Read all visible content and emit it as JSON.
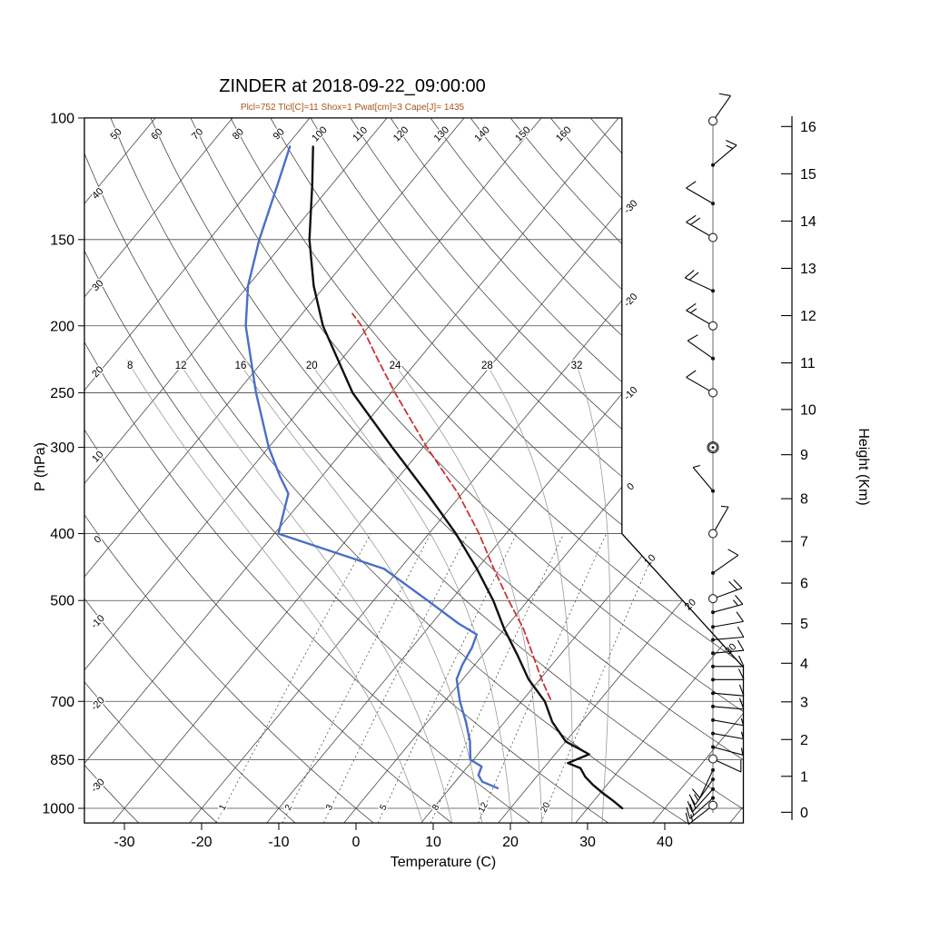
{
  "title": "ZINDER at 2018-09-22_09:00:00",
  "subtitle": "Plcl=752 Tlcl[C]=11 Shox=1 Pwat[cm]=3 Cape[J]= 1435",
  "axes": {
    "x_label": "Temperature (C)",
    "y_left_label": "P (hPa)",
    "y_right_label": "Height (Km)",
    "pressure_ticks": [
      100,
      150,
      200,
      250,
      300,
      400,
      500,
      700,
      850,
      1000
    ],
    "temperature_ticks": [
      -30,
      -20,
      -10,
      0,
      10,
      20,
      30,
      40
    ],
    "height_ticks_km": [
      0,
      1,
      2,
      3,
      4,
      5,
      6,
      7,
      8,
      9,
      10,
      11,
      12,
      13,
      14,
      15,
      16
    ]
  },
  "colors": {
    "temperature_curve": "#101010",
    "dewpoint_curve": "#4a6fc8",
    "parcel_curve": "#cc3333",
    "subtitle_text": "#A5531C",
    "background_lines": "#4a4a42",
    "moist_adiabat_lines": "#9a9a9a",
    "mixing_ratio_lines": "#3a3a3a",
    "frame": "#000000"
  },
  "chart_data": {
    "type": "skew-t-log-p sounding",
    "station": "ZINDER",
    "datetime": "2018-09-22_09:00:00",
    "indices": {
      "Plcl_hPa": 752,
      "Tlcl_C": 11,
      "Shox": 1,
      "Pwat_cm": 3,
      "Cape_J": 1435
    },
    "top_dry_adiabat_labels": [
      50,
      60,
      70,
      80,
      90,
      100,
      110,
      120,
      130,
      140,
      150,
      160
    ],
    "left_dry_adiabat_labels": [
      40,
      30,
      20,
      10,
      0,
      -10,
      -20,
      -30
    ],
    "right_isotherm_labels": [
      -30,
      -20,
      -10,
      0,
      10,
      20,
      30
    ],
    "moist_adiabat_labels": [
      8,
      12,
      16,
      20,
      24,
      28,
      32
    ],
    "mixing_ratio_lines_g_kg": [
      1,
      2,
      3,
      5,
      8,
      12,
      20
    ],
    "temperature_profile_p_T": [
      [
        1000,
        34.5
      ],
      [
        975,
        32.5
      ],
      [
        950,
        30.3
      ],
      [
        925,
        28.2
      ],
      [
        900,
        26.3
      ],
      [
        875,
        24.8
      ],
      [
        860,
        22.6
      ],
      [
        835,
        24.4
      ],
      [
        800,
        20.0
      ],
      [
        750,
        16.2
      ],
      [
        700,
        13.0
      ],
      [
        650,
        8.5
      ],
      [
        600,
        4.5
      ],
      [
        550,
        0.0
      ],
      [
        500,
        -4.5
      ],
      [
        450,
        -10.0
      ],
      [
        400,
        -16.5
      ],
      [
        350,
        -24.5
      ],
      [
        300,
        -34.0
      ],
      [
        250,
        -45.0
      ],
      [
        200,
        -56.0
      ],
      [
        175,
        -61.5
      ],
      [
        150,
        -67.0
      ],
      [
        125,
        -72.5
      ],
      [
        110,
        -76.5
      ]
    ],
    "dewpoint_profile_p_Td": [
      [
        935,
        16.2
      ],
      [
        915,
        13.5
      ],
      [
        895,
        12.3
      ],
      [
        870,
        11.8
      ],
      [
        850,
        9.6
      ],
      [
        820,
        8.4
      ],
      [
        800,
        7.6
      ],
      [
        750,
        5.0
      ],
      [
        700,
        2.0
      ],
      [
        650,
        -0.8
      ],
      [
        620,
        -1.6
      ],
      [
        585,
        -2.2
      ],
      [
        560,
        -3.0
      ],
      [
        540,
        -6.5
      ],
      [
        500,
        -13.0
      ],
      [
        450,
        -22.0
      ],
      [
        400,
        -39.5
      ],
      [
        350,
        -42.5
      ],
      [
        330,
        -45.5
      ],
      [
        300,
        -50.0
      ],
      [
        250,
        -57.5
      ],
      [
        200,
        -66.0
      ],
      [
        175,
        -70.0
      ],
      [
        150,
        -73.5
      ],
      [
        125,
        -77.0
      ],
      [
        110,
        -79.5
      ]
    ],
    "parcel_profile_p_T": [
      [
        695,
        13.5
      ],
      [
        650,
        10.2
      ],
      [
        600,
        6.5
      ],
      [
        550,
        2.5
      ],
      [
        500,
        -2.5
      ],
      [
        450,
        -7.8
      ],
      [
        400,
        -13.5
      ],
      [
        350,
        -20.5
      ],
      [
        300,
        -29.5
      ],
      [
        250,
        -39.5
      ],
      [
        225,
        -45.0
      ],
      [
        200,
        -51.0
      ],
      [
        192,
        -53.5
      ]
    ],
    "wind_barbs": [
      {
        "p": 101,
        "marker": "circle",
        "dir": 35,
        "kt": 10
      },
      {
        "p": 117,
        "marker": "dot",
        "dir": 50,
        "kt": 15
      },
      {
        "p": 133,
        "marker": "dot",
        "dir": 300,
        "kt": 10
      },
      {
        "p": 149,
        "marker": "circle",
        "dir": 300,
        "kt": 20
      },
      {
        "p": 178,
        "marker": "dot",
        "dir": 295,
        "kt": 20
      },
      {
        "p": 200,
        "marker": "circle",
        "dir": 300,
        "kt": 15
      },
      {
        "p": 223,
        "marker": "dot",
        "dir": 305,
        "kt": 10
      },
      {
        "p": 250,
        "marker": "circle",
        "dir": 300,
        "kt": 10
      },
      {
        "p": 300,
        "marker": "circle",
        "dir": 0,
        "kt": 0
      },
      {
        "p": 347,
        "marker": "dot",
        "dir": 320,
        "kt": 5
      },
      {
        "p": 400,
        "marker": "circle",
        "dir": 30,
        "kt": 5
      },
      {
        "p": 456,
        "marker": "dot",
        "dir": 55,
        "kt": 10
      },
      {
        "p": 497,
        "marker": "circle",
        "dir": 70,
        "kt": 20
      },
      {
        "p": 520,
        "marker": "dot",
        "dir": 75,
        "kt": 15
      },
      {
        "p": 546,
        "marker": "dot",
        "dir": 80,
        "kt": 10
      },
      {
        "p": 570,
        "marker": "dot",
        "dir": 85,
        "kt": 10
      },
      {
        "p": 596,
        "marker": "dot",
        "dir": 85,
        "kt": 10
      },
      {
        "p": 623,
        "marker": "dot",
        "dir": 90,
        "kt": 10
      },
      {
        "p": 651,
        "marker": "dot",
        "dir": 90,
        "kt": 10
      },
      {
        "p": 681,
        "marker": "dot",
        "dir": 95,
        "kt": 10
      },
      {
        "p": 712,
        "marker": "dot",
        "dir": 95,
        "kt": 10
      },
      {
        "p": 745,
        "marker": "dot",
        "dir": 100,
        "kt": 5
      },
      {
        "p": 779,
        "marker": "dot",
        "dir": 100,
        "kt": 5
      },
      {
        "p": 815,
        "marker": "dot",
        "dir": 105,
        "kt": 5
      },
      {
        "p": 848,
        "marker": "circle",
        "dir": 115,
        "kt": 10
      },
      {
        "p": 880,
        "marker": "dot",
        "dir": 205,
        "kt": 10
      },
      {
        "p": 908,
        "marker": "dot",
        "dir": 215,
        "kt": 15
      },
      {
        "p": 938,
        "marker": "dot",
        "dir": 222,
        "kt": 20
      },
      {
        "p": 966,
        "marker": "dot",
        "dir": 228,
        "kt": 20
      },
      {
        "p": 990,
        "marker": "circle",
        "dir": 232,
        "kt": 15
      }
    ]
  }
}
